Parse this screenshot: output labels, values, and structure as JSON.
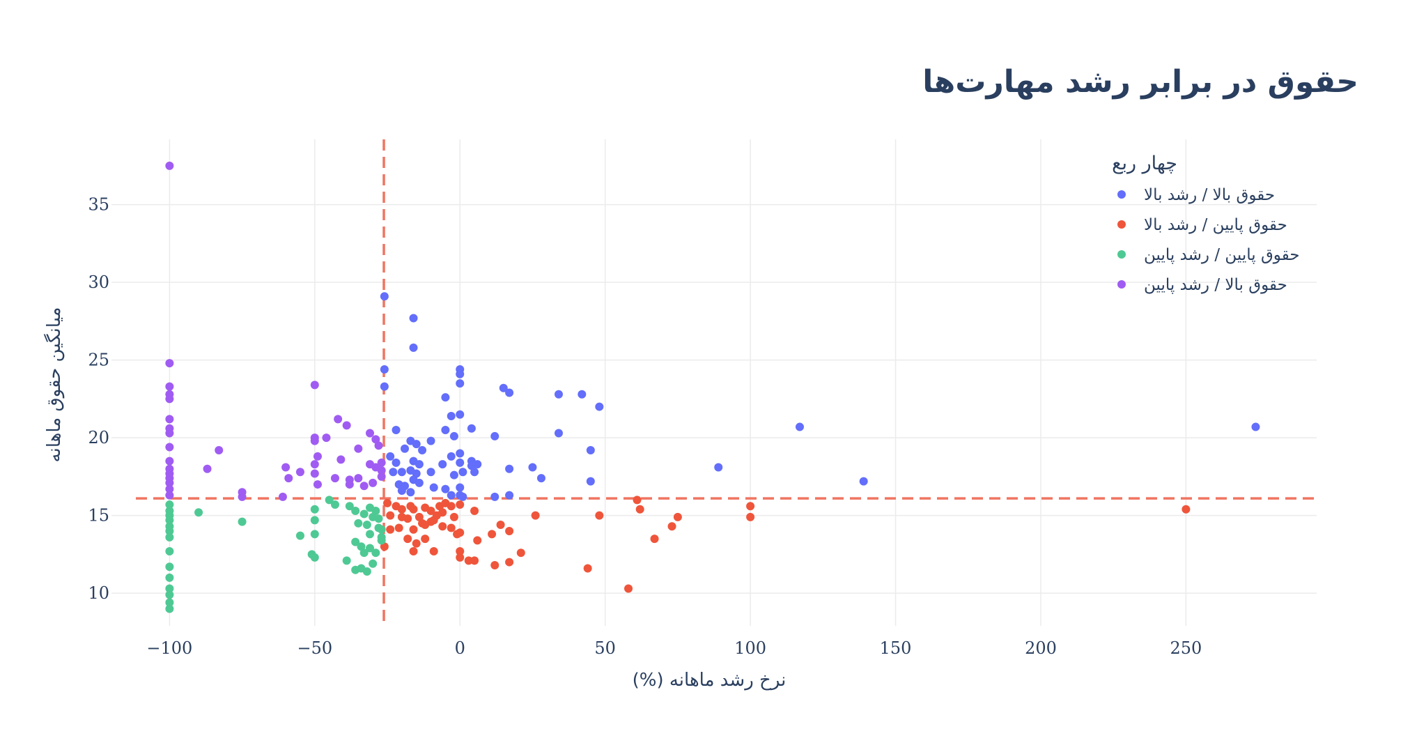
{
  "chart_data": {
    "type": "scatter",
    "title": "حقوق در برابر رشد مهارت‌ها",
    "xlabel": "(%) نرخ رشد ماهانه",
    "ylabel": "میانگین حقوق ماهانه",
    "xlim": [
      -120,
      295
    ],
    "ylim": [
      7.9,
      39.2
    ],
    "x_ticks": [
      -100,
      -50,
      0,
      50,
      100,
      150,
      200,
      250
    ],
    "x_tick_labels": [
      "−100",
      "−50",
      "0",
      "50",
      "100",
      "150",
      "200",
      "250"
    ],
    "y_ticks": [
      10,
      15,
      20,
      25,
      30,
      35
    ],
    "y_tick_labels": [
      "10",
      "15",
      "20",
      "25",
      "30",
      "35"
    ],
    "grid": true,
    "reference_lines": {
      "x": -26.2,
      "y": 16.1,
      "color": "#ef7561",
      "style": "dashed"
    },
    "legend": {
      "title": "چهار ربع",
      "position": "top-right"
    },
    "series": [
      {
        "name": "حقوق بالا / رشد بالا",
        "color": "#636efa",
        "points": [
          [
            -26,
            29.1
          ],
          [
            -16,
            27.7
          ],
          [
            -16,
            25.8
          ],
          [
            -26,
            24.4
          ],
          [
            -26,
            23.3
          ],
          [
            0,
            24.4
          ],
          [
            0,
            24.1
          ],
          [
            0,
            23.5
          ],
          [
            -5,
            22.6
          ],
          [
            15,
            23.2
          ],
          [
            17,
            22.9
          ],
          [
            34,
            22.8
          ],
          [
            42,
            22.8
          ],
          [
            48,
            22
          ],
          [
            -3,
            21.4
          ],
          [
            0,
            21.5
          ],
          [
            -5,
            20.5
          ],
          [
            4,
            20.6
          ],
          [
            12,
            20.1
          ],
          [
            -22,
            20.5
          ],
          [
            -10,
            19.8
          ],
          [
            -2,
            20.1
          ],
          [
            34,
            20.3
          ],
          [
            117,
            20.7
          ],
          [
            274,
            20.7
          ],
          [
            -17,
            19.8
          ],
          [
            -15,
            19.6
          ],
          [
            -13,
            19.2
          ],
          [
            -19,
            19.3
          ],
          [
            -24,
            18.8
          ],
          [
            -22,
            18.4
          ],
          [
            -16,
            18.5
          ],
          [
            -14,
            18.3
          ],
          [
            -6,
            18.3
          ],
          [
            -3,
            18.8
          ],
          [
            0,
            19
          ],
          [
            0,
            18.4
          ],
          [
            4,
            18.5
          ],
          [
            6,
            18.3
          ],
          [
            45,
            19.2
          ],
          [
            -23,
            17.8
          ],
          [
            -20,
            17.8
          ],
          [
            -17,
            17.9
          ],
          [
            -15,
            17.7
          ],
          [
            -10,
            17.8
          ],
          [
            -2,
            17.6
          ],
          [
            1,
            17.8
          ],
          [
            4,
            18.2
          ],
          [
            5,
            17.8
          ],
          [
            17,
            18
          ],
          [
            25,
            18.1
          ],
          [
            89,
            18.1
          ],
          [
            -21,
            17
          ],
          [
            -19,
            16.9
          ],
          [
            -16,
            17.3
          ],
          [
            -14,
            17.1
          ],
          [
            -9,
            16.8
          ],
          [
            -5,
            16.7
          ],
          [
            0,
            16.8
          ],
          [
            28,
            17.4
          ],
          [
            45,
            17.2
          ],
          [
            139,
            17.2
          ],
          [
            -20,
            16.6
          ],
          [
            -17,
            16.5
          ],
          [
            -3,
            16.3
          ],
          [
            0,
            16.3
          ],
          [
            1,
            16.2
          ],
          [
            12,
            16.2
          ],
          [
            17,
            16.3
          ]
        ]
      },
      {
        "name": "حقوق پایین / رشد بالا",
        "color": "#ef553b",
        "points": [
          [
            -25,
            15.8
          ],
          [
            -22,
            15.6
          ],
          [
            -20,
            15.4
          ],
          [
            -17,
            15.6
          ],
          [
            -16,
            15.4
          ],
          [
            -12,
            15.5
          ],
          [
            -10,
            15.3
          ],
          [
            -7,
            15.6
          ],
          [
            -5,
            15.8
          ],
          [
            -3,
            15.6
          ],
          [
            0,
            15.7
          ],
          [
            5,
            15.3
          ],
          [
            -24,
            15
          ],
          [
            -20,
            14.9
          ],
          [
            -18,
            14.8
          ],
          [
            -14,
            14.9
          ],
          [
            -10,
            14.6
          ],
          [
            -8,
            15
          ],
          [
            -6,
            15.2
          ],
          [
            -2,
            14.9
          ],
          [
            -24,
            14.1
          ],
          [
            -21,
            14.2
          ],
          [
            -16,
            14.1
          ],
          [
            -13,
            14.5
          ],
          [
            -12,
            14.4
          ],
          [
            -9,
            14.7
          ],
          [
            -6,
            14.3
          ],
          [
            -3,
            14.2
          ],
          [
            -1,
            13.8
          ],
          [
            0,
            13.9
          ],
          [
            11,
            13.8
          ],
          [
            14,
            14.4
          ],
          [
            17,
            14
          ],
          [
            26,
            15
          ],
          [
            48,
            15
          ],
          [
            61,
            16
          ],
          [
            62,
            15.4
          ],
          [
            75,
            14.9
          ],
          [
            73,
            14.3
          ],
          [
            100,
            15.6
          ],
          [
            100,
            14.9
          ],
          [
            250,
            15.4
          ],
          [
            -18,
            13.5
          ],
          [
            -15,
            13.2
          ],
          [
            -12,
            13.5
          ],
          [
            -26,
            13
          ],
          [
            -16,
            12.7
          ],
          [
            -9,
            12.7
          ],
          [
            0,
            12.7
          ],
          [
            0,
            12.3
          ],
          [
            3,
            12.1
          ],
          [
            5,
            12.1
          ],
          [
            6,
            13.4
          ],
          [
            12,
            11.8
          ],
          [
            17,
            12
          ],
          [
            21,
            12.6
          ],
          [
            44,
            11.6
          ],
          [
            58,
            10.3
          ],
          [
            67,
            13.5
          ]
        ]
      },
      {
        "name": "حقوق پایین / رشد پایین",
        "color": "#4fc994",
        "points": [
          [
            -100,
            15.7
          ],
          [
            -100,
            15.3
          ],
          [
            -100,
            15
          ],
          [
            -100,
            14.7
          ],
          [
            -100,
            14.3
          ],
          [
            -100,
            14
          ],
          [
            -100,
            13.6
          ],
          [
            -100,
            12.7
          ],
          [
            -100,
            11.7
          ],
          [
            -100,
            11
          ],
          [
            -100,
            10.3
          ],
          [
            -100,
            9.9
          ],
          [
            -100,
            9.4
          ],
          [
            -100,
            9
          ],
          [
            -90,
            15.2
          ],
          [
            -75,
            14.6
          ],
          [
            -55,
            13.7
          ],
          [
            -50,
            15.4
          ],
          [
            -50,
            14.7
          ],
          [
            -50,
            13.8
          ],
          [
            -51,
            12.5
          ],
          [
            -50,
            12.3
          ],
          [
            -45,
            16
          ],
          [
            -43,
            15.7
          ],
          [
            -38,
            15.6
          ],
          [
            -36,
            15.3
          ],
          [
            -33,
            15.1
          ],
          [
            -31,
            15.5
          ],
          [
            -29,
            15.3
          ],
          [
            -28,
            14.8
          ],
          [
            -35,
            14.5
          ],
          [
            -32,
            14.4
          ],
          [
            -30,
            14.9
          ],
          [
            -28,
            14.2
          ],
          [
            -27,
            14.1
          ],
          [
            -31,
            13.8
          ],
          [
            -27,
            13.6
          ],
          [
            -36,
            13.3
          ],
          [
            -34,
            13
          ],
          [
            -33,
            12.6
          ],
          [
            -31,
            12.9
          ],
          [
            -27,
            13.4
          ],
          [
            -39,
            12.1
          ],
          [
            -36,
            11.5
          ],
          [
            -34,
            11.6
          ],
          [
            -32,
            11.4
          ],
          [
            -30,
            11.9
          ],
          [
            -29,
            12.6
          ]
        ]
      },
      {
        "name": "حقوق بالا / رشد پایین",
        "color": "#a05cf2",
        "points": [
          [
            -100,
            37.5
          ],
          [
            -100,
            24.8
          ],
          [
            -100,
            23.3
          ],
          [
            -100,
            22.8
          ],
          [
            -100,
            22.5
          ],
          [
            -100,
            21.2
          ],
          [
            -100,
            20.6
          ],
          [
            -100,
            20.3
          ],
          [
            -100,
            19.4
          ],
          [
            -100,
            18.5
          ],
          [
            -100,
            18
          ],
          [
            -100,
            17.7
          ],
          [
            -100,
            17.4
          ],
          [
            -100,
            17.1
          ],
          [
            -100,
            16.7
          ],
          [
            -100,
            16.3
          ],
          [
            -87,
            18
          ],
          [
            -83,
            19.2
          ],
          [
            -75,
            16.5
          ],
          [
            -75,
            16.2
          ],
          [
            -61,
            16.2
          ],
          [
            -60,
            18.1
          ],
          [
            -59,
            17.4
          ],
          [
            -55,
            17.8
          ],
          [
            -50,
            23.4
          ],
          [
            -50,
            20
          ],
          [
            -50,
            19.8
          ],
          [
            -50,
            18.3
          ],
          [
            -50,
            17.7
          ],
          [
            -49,
            17
          ],
          [
            -49,
            18.8
          ],
          [
            -46,
            20
          ],
          [
            -42,
            21.2
          ],
          [
            -39,
            20.8
          ],
          [
            -41,
            18.6
          ],
          [
            -43,
            17.4
          ],
          [
            -38,
            17.3
          ],
          [
            -38,
            17
          ],
          [
            -35,
            19.3
          ],
          [
            -35,
            17.4
          ],
          [
            -33,
            16.9
          ],
          [
            -31,
            18.3
          ],
          [
            -31,
            20.3
          ],
          [
            -28,
            19.5
          ],
          [
            -29,
            19.9
          ],
          [
            -29,
            18.1
          ],
          [
            -27,
            18.4
          ],
          [
            -27,
            17.9
          ],
          [
            -30,
            17.1
          ],
          [
            -27,
            17.5
          ]
        ]
      }
    ]
  }
}
